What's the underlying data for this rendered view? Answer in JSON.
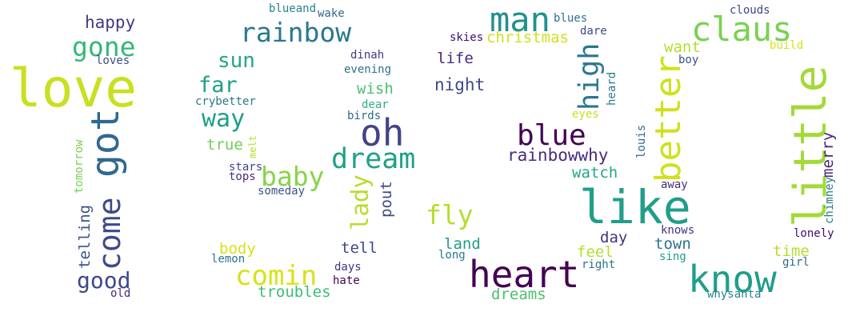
{
  "words": [
    {
      "id": "love",
      "text": "love",
      "color": "#c8e020",
      "orient": "h"
    },
    {
      "id": "happy",
      "text": "happy",
      "color": "#443983",
      "orient": "h"
    },
    {
      "id": "gone",
      "text": "gone",
      "color": "#35b779",
      "orient": "h"
    },
    {
      "id": "loves",
      "text": "loves",
      "color": "#3e4989",
      "orient": "h"
    },
    {
      "id": "got",
      "text": "got",
      "color": "#31688e",
      "orient": "v"
    },
    {
      "id": "come",
      "text": "come",
      "color": "#3e4989",
      "orient": "v"
    },
    {
      "id": "tomorrow",
      "text": "tomorrow",
      "color": "#7ad151",
      "orient": "v"
    },
    {
      "id": "telling",
      "text": "telling",
      "color": "#3b528b",
      "orient": "v"
    },
    {
      "id": "good",
      "text": "good",
      "color": "#3e4989",
      "orient": "h"
    },
    {
      "id": "old",
      "text": "old",
      "color": "#482878",
      "orient": "h"
    },
    {
      "id": "blueand",
      "text": "blueand",
      "color": "#26828e",
      "orient": "h"
    },
    {
      "id": "wake",
      "text": "wake",
      "color": "#31688e",
      "orient": "h"
    },
    {
      "id": "rainbow",
      "text": "rainbow",
      "color": "#2a788e",
      "orient": "h"
    },
    {
      "id": "sun",
      "text": "sun",
      "color": "#22a884",
      "orient": "h"
    },
    {
      "id": "far",
      "text": "far",
      "color": "#1f9e89",
      "orient": "h"
    },
    {
      "id": "crybetter",
      "text": "crybetter",
      "color": "#2a788e",
      "orient": "h"
    },
    {
      "id": "way",
      "text": "way",
      "color": "#1f9e89",
      "orient": "h"
    },
    {
      "id": "true",
      "text": "true",
      "color": "#6ece58",
      "orient": "h"
    },
    {
      "id": "melt",
      "text": "melt",
      "color": "#b5de2b",
      "orient": "v"
    },
    {
      "id": "stars",
      "text": "stars",
      "color": "#414487",
      "orient": "h"
    },
    {
      "id": "tops",
      "text": "tops",
      "color": "#472d7b",
      "orient": "h"
    },
    {
      "id": "baby",
      "text": "baby",
      "color": "#86d549",
      "orient": "h"
    },
    {
      "id": "someday",
      "text": "someday",
      "color": "#3b528b",
      "orient": "h"
    },
    {
      "id": "dinah",
      "text": "dinah",
      "color": "#443983",
      "orient": "h"
    },
    {
      "id": "evening",
      "text": "evening",
      "color": "#2c728e",
      "orient": "h"
    },
    {
      "id": "wish",
      "text": "wish",
      "color": "#4ac16d",
      "orient": "h"
    },
    {
      "id": "dear",
      "text": "dear",
      "color": "#2db27d",
      "orient": "h"
    },
    {
      "id": "birds",
      "text": "birds",
      "color": "#31688e",
      "orient": "h"
    },
    {
      "id": "oh",
      "text": "oh",
      "color": "#414487",
      "orient": "h"
    },
    {
      "id": "dream",
      "text": "dream",
      "color": "#1fa187",
      "orient": "h"
    },
    {
      "id": "lady",
      "text": "lady",
      "color": "#b5de2b",
      "orient": "v"
    },
    {
      "id": "pout",
      "text": "pout",
      "color": "#3e4989",
      "orient": "v"
    },
    {
      "id": "body",
      "text": "body",
      "color": "#d8e219",
      "orient": "h"
    },
    {
      "id": "lemon",
      "text": "lemon",
      "color": "#2c728e",
      "orient": "h"
    },
    {
      "id": "comin",
      "text": "comin",
      "color": "#d8e219",
      "orient": "h"
    },
    {
      "id": "tell",
      "text": "tell",
      "color": "#3e4989",
      "orient": "h"
    },
    {
      "id": "days",
      "text": "days",
      "color": "#46337e",
      "orient": "h"
    },
    {
      "id": "hate",
      "text": "hate",
      "color": "#440154",
      "orient": "h"
    },
    {
      "id": "troubles",
      "text": "troubles",
      "color": "#3fbc73",
      "orient": "h"
    },
    {
      "id": "man",
      "text": "man",
      "color": "#21918c",
      "orient": "h"
    },
    {
      "id": "blues",
      "text": "blues",
      "color": "#2c728e",
      "orient": "h"
    },
    {
      "id": "skies",
      "text": "skies",
      "color": "#3b0f70",
      "orient": "h"
    },
    {
      "id": "christmas",
      "text": "christmas",
      "color": "#d0e11c",
      "orient": "h"
    },
    {
      "id": "dare",
      "text": "dare",
      "color": "#3e4989",
      "orient": "h"
    },
    {
      "id": "life",
      "text": "life",
      "color": "#482878",
      "orient": "h"
    },
    {
      "id": "night",
      "text": "night",
      "color": "#3e4989",
      "orient": "h"
    },
    {
      "id": "high",
      "text": "high",
      "color": "#2a788e",
      "orient": "v"
    },
    {
      "id": "heard",
      "text": "heard",
      "color": "#2a788e",
      "orient": "v"
    },
    {
      "id": "eyes",
      "text": "eyes",
      "color": "#c8e020",
      "orient": "h"
    },
    {
      "id": "blue",
      "text": "blue",
      "color": "#440154",
      "orient": "h"
    },
    {
      "id": "rainbowwhy",
      "text": "rainbowwhy",
      "color": "#472d7b",
      "orient": "h"
    },
    {
      "id": "watch",
      "text": "watch",
      "color": "#22a884",
      "orient": "h"
    },
    {
      "id": "fly",
      "text": "fly",
      "color": "#b5de2b",
      "orient": "h"
    },
    {
      "id": "land",
      "text": "land",
      "color": "#1f9e89",
      "orient": "h"
    },
    {
      "id": "long",
      "text": "long",
      "color": "#2a788e",
      "orient": "h"
    },
    {
      "id": "heart",
      "text": "heart",
      "color": "#440154",
      "orient": "h"
    },
    {
      "id": "dreams",
      "text": "dreams",
      "color": "#4ac16d",
      "orient": "h"
    },
    {
      "id": "like",
      "text": "like",
      "color": "#1f9e89",
      "orient": "h"
    },
    {
      "id": "day",
      "text": "day",
      "color": "#46337e",
      "orient": "h"
    },
    {
      "id": "feel",
      "text": "feel",
      "color": "#b5de2b",
      "orient": "h"
    },
    {
      "id": "right",
      "text": "right",
      "color": "#2c728e",
      "orient": "h"
    },
    {
      "id": "louis",
      "text": "louis",
      "color": "#31688e",
      "orient": "v"
    },
    {
      "id": "claus",
      "text": "claus",
      "color": "#7ad151",
      "orient": "h"
    },
    {
      "id": "clouds",
      "text": "clouds",
      "color": "#3e4989",
      "orient": "h"
    },
    {
      "id": "build",
      "text": "build",
      "color": "#d8e219",
      "orient": "h"
    },
    {
      "id": "want",
      "text": "want",
      "color": "#b5de2b",
      "orient": "h"
    },
    {
      "id": "boy",
      "text": "boy",
      "color": "#3b528b",
      "orient": "h"
    },
    {
      "id": "better",
      "text": "better",
      "color": "#d0e11c",
      "orient": "v"
    },
    {
      "id": "little",
      "text": "little",
      "color": "#a2da37",
      "orient": "v"
    },
    {
      "id": "merry",
      "text": "merry",
      "color": "#482878",
      "orient": "v"
    },
    {
      "id": "chimney",
      "text": "chimney",
      "color": "#2a788e",
      "orient": "v"
    },
    {
      "id": "away",
      "text": "away",
      "color": "#472d7b",
      "orient": "h"
    },
    {
      "id": "knows",
      "text": "knows",
      "color": "#46337e",
      "orient": "h"
    },
    {
      "id": "town",
      "text": "town",
      "color": "#2c728e",
      "orient": "h"
    },
    {
      "id": "sing",
      "text": "sing",
      "color": "#1f9e89",
      "orient": "h"
    },
    {
      "id": "know",
      "text": "know",
      "color": "#1f9e89",
      "orient": "h"
    },
    {
      "id": "lonely",
      "text": "lonely",
      "color": "#3b0f70",
      "orient": "h"
    },
    {
      "id": "time",
      "text": "time",
      "color": "#b5de2b",
      "orient": "h"
    },
    {
      "id": "girl",
      "text": "girl",
      "color": "#31688e",
      "orient": "h"
    },
    {
      "id": "whysanta",
      "text": "whysanta",
      "color": "#26828e",
      "orient": "h"
    }
  ]
}
